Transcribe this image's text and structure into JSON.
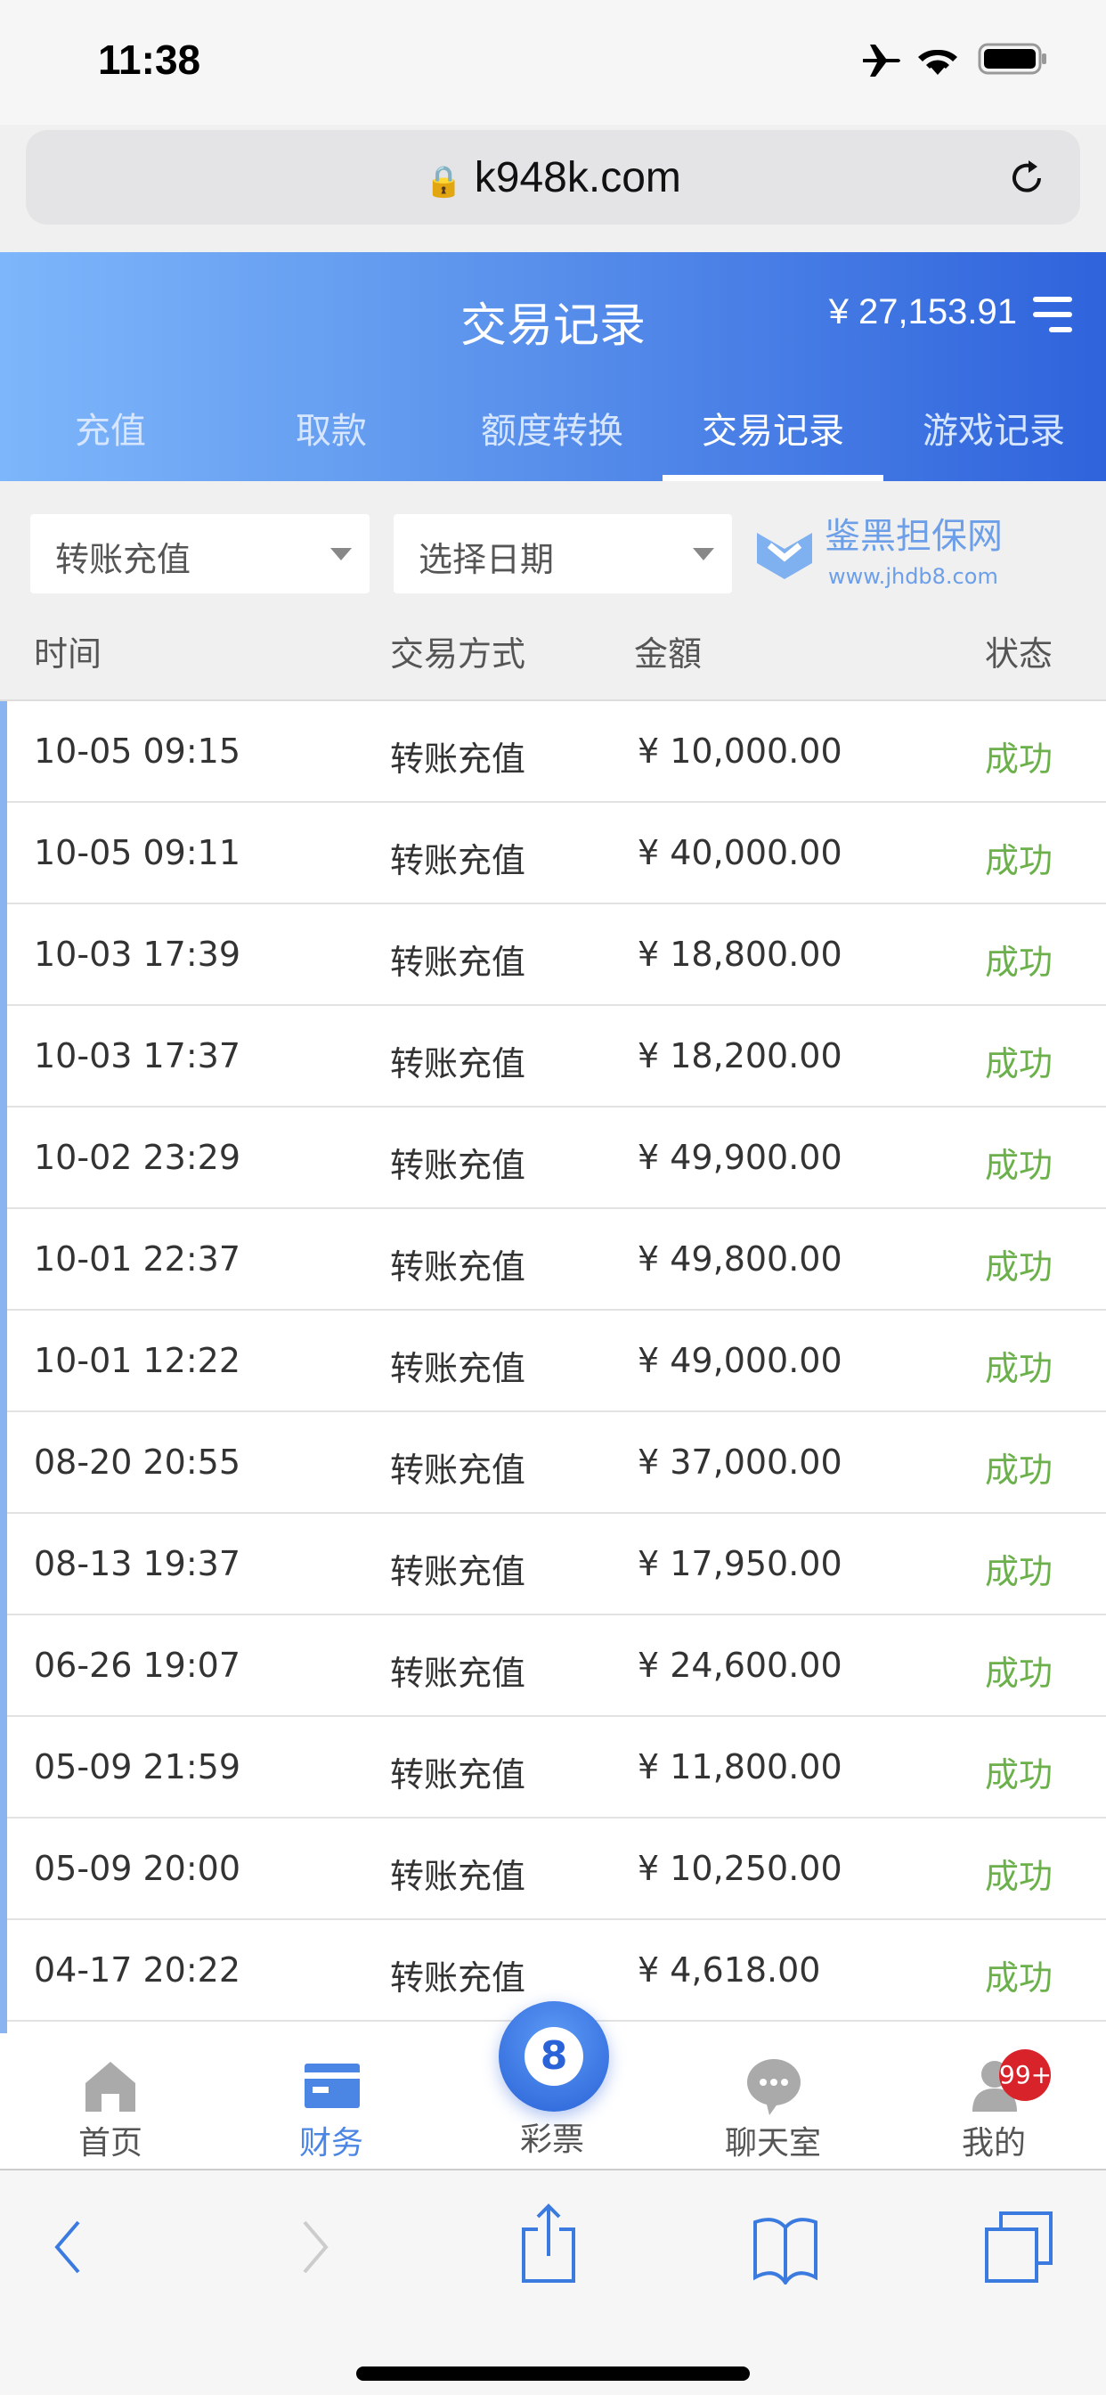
{
  "status_bar": {
    "time": "11:38",
    "icons": [
      "airplane-icon",
      "wifi-icon",
      "battery-icon"
    ]
  },
  "browser": {
    "url": "k948k.com",
    "toolbar": [
      "back-icon",
      "forward-icon",
      "share-icon",
      "bookmarks-icon",
      "tabs-icon"
    ]
  },
  "header": {
    "title": "交易记录",
    "balance": "¥ 27,153.91"
  },
  "tabs": [
    {
      "label": "充值"
    },
    {
      "label": "取款"
    },
    {
      "label": "额度转换"
    },
    {
      "label": "交易记录",
      "active": true
    },
    {
      "label": "游戏记录"
    }
  ],
  "filters": {
    "type": "转账充值",
    "date": "选择日期"
  },
  "columns": [
    "时间",
    "交易方式",
    "金額",
    "状态"
  ],
  "rows": [
    {
      "time": "10-05 09:15",
      "method": "转账充值",
      "amount": "¥ 10,000.00",
      "status": "成功"
    },
    {
      "time": "10-05 09:11",
      "method": "转账充值",
      "amount": "¥ 40,000.00",
      "status": "成功"
    },
    {
      "time": "10-03 17:39",
      "method": "转账充值",
      "amount": "¥ 18,800.00",
      "status": "成功"
    },
    {
      "time": "10-03 17:37",
      "method": "转账充值",
      "amount": "¥ 18,200.00",
      "status": "成功"
    },
    {
      "time": "10-02 23:29",
      "method": "转账充值",
      "amount": "¥ 49,900.00",
      "status": "成功"
    },
    {
      "time": "10-01 22:37",
      "method": "转账充值",
      "amount": "¥ 49,800.00",
      "status": "成功"
    },
    {
      "time": "10-01 12:22",
      "method": "转账充值",
      "amount": "¥ 49,000.00",
      "status": "成功"
    },
    {
      "time": "08-20 20:55",
      "method": "转账充值",
      "amount": "¥ 37,000.00",
      "status": "成功"
    },
    {
      "time": "08-13 19:37",
      "method": "转账充值",
      "amount": "¥ 17,950.00",
      "status": "成功"
    },
    {
      "time": "06-26 19:07",
      "method": "转账充值",
      "amount": "¥ 24,600.00",
      "status": "成功"
    },
    {
      "time": "05-09 21:59",
      "method": "转账充值",
      "amount": "¥ 11,800.00",
      "status": "成功"
    },
    {
      "time": "05-09 20:00",
      "method": "转账充值",
      "amount": "¥ 10,250.00",
      "status": "成功"
    },
    {
      "time": "04-17 20:22",
      "method": "转账充值",
      "amount": "¥ 4,618.00",
      "status": "成功"
    }
  ],
  "watermark": {
    "name": "鉴黑担保网",
    "site": "www.jhdb8.com"
  },
  "bottom_nav": [
    {
      "label": "首页",
      "icon": "home-icon"
    },
    {
      "label": "财务",
      "icon": "card-icon",
      "active": true
    },
    {
      "label": "彩票",
      "icon": "lottery-ball-icon"
    },
    {
      "label": "聊天室",
      "icon": "chat-icon"
    },
    {
      "label": "我的",
      "icon": "user-icon",
      "badge": "99+"
    }
  ],
  "lottery_ball": "8",
  "colors": {
    "accent": "#2f63dc",
    "success": "#6bb04a",
    "badge": "#d9232a"
  }
}
